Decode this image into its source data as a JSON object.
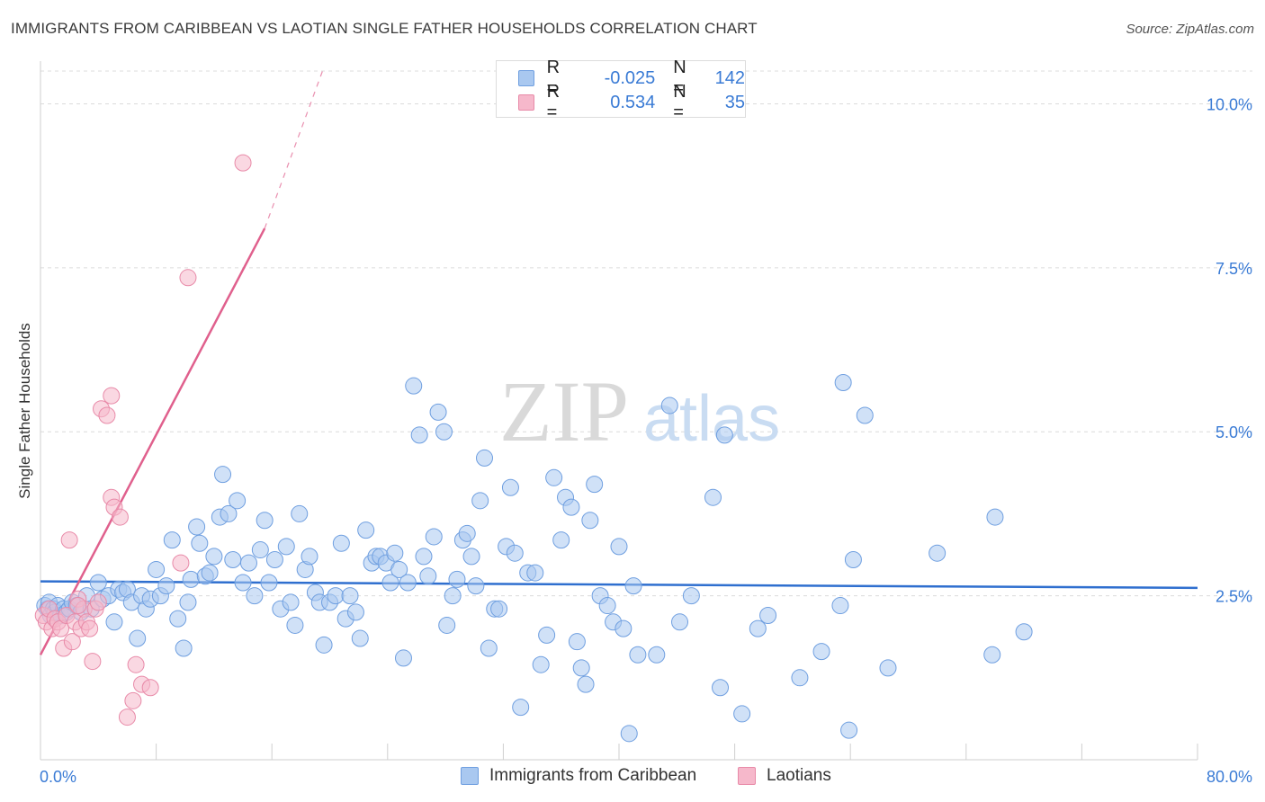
{
  "title": "IMMIGRANTS FROM CARIBBEAN VS LAOTIAN SINGLE FATHER HOUSEHOLDS CORRELATION CHART",
  "source": "Source: ZipAtlas.com",
  "watermark": {
    "zip": "ZIP",
    "atlas": "atlas"
  },
  "legend": {
    "rows": [
      {
        "r_label": "R =",
        "r_value": "-0.025",
        "n_label": "N =",
        "n_value": "142",
        "color": "#a9c8f0",
        "border": "#6f9fe0"
      },
      {
        "r_label": "R =",
        "r_value": "0.534",
        "n_label": "N =",
        "n_value": "35",
        "color": "#f6b8cb",
        "border": "#e88aa8"
      }
    ]
  },
  "bottom_legend": [
    {
      "label": "Immigrants from Caribbean",
      "color": "#a9c8f0",
      "border": "#6f9fe0"
    },
    {
      "label": "Laotians",
      "color": "#f6b8cb",
      "border": "#e88aa8"
    }
  ],
  "chart_data": {
    "type": "scatter",
    "title": "IMMIGRANTS FROM CARIBBEAN VS LAOTIAN SINGLE FATHER HOUSEHOLDS CORRELATION CHART",
    "xlabel": "",
    "ylabel": "Single Father Households",
    "xlim": [
      0,
      80
    ],
    "ylim": [
      0,
      10.5
    ],
    "x_tick_labels": [
      "0.0%",
      "80.0%"
    ],
    "y_ticks": [
      2.5,
      5.0,
      7.5,
      10.0
    ],
    "y_tick_labels": [
      "2.5%",
      "5.0%",
      "7.5%",
      "10.0%"
    ],
    "grid": true,
    "legend_position": "top-center",
    "series": [
      {
        "name": "Immigrants from Caribbean",
        "color": "#6f9fe0",
        "fill": "#a9c8f0",
        "trend": {
          "x": [
            0,
            80
          ],
          "y": [
            2.72,
            2.62
          ],
          "color": "#2f6fcf"
        },
        "points": [
          [
            0.3,
            2.35
          ],
          [
            0.5,
            2.3
          ],
          [
            0.6,
            2.4
          ],
          [
            0.7,
            2.2
          ],
          [
            0.9,
            2.3
          ],
          [
            1.0,
            2.25
          ],
          [
            1.2,
            2.35
          ],
          [
            1.4,
            2.2
          ],
          [
            1.6,
            2.3
          ],
          [
            1.8,
            2.25
          ],
          [
            2.0,
            2.3
          ],
          [
            2.2,
            2.4
          ],
          [
            2.5,
            2.35
          ],
          [
            2.8,
            2.25
          ],
          [
            3.2,
            2.5
          ],
          [
            3.5,
            2.3
          ],
          [
            4.0,
            2.7
          ],
          [
            4.3,
            2.45
          ],
          [
            4.7,
            2.5
          ],
          [
            5.1,
            2.1
          ],
          [
            5.4,
            2.6
          ],
          [
            5.7,
            2.55
          ],
          [
            6.0,
            2.6
          ],
          [
            6.3,
            2.4
          ],
          [
            6.7,
            1.85
          ],
          [
            7.0,
            2.5
          ],
          [
            7.3,
            2.3
          ],
          [
            7.6,
            2.45
          ],
          [
            8.0,
            2.9
          ],
          [
            8.3,
            2.5
          ],
          [
            8.7,
            2.65
          ],
          [
            9.1,
            3.35
          ],
          [
            9.5,
            2.15
          ],
          [
            9.9,
            1.7
          ],
          [
            10.2,
            2.4
          ],
          [
            10.4,
            2.75
          ],
          [
            10.8,
            3.55
          ],
          [
            11.0,
            3.3
          ],
          [
            11.4,
            2.8
          ],
          [
            11.7,
            2.85
          ],
          [
            12.0,
            3.1
          ],
          [
            12.4,
            3.7
          ],
          [
            12.6,
            4.35
          ],
          [
            13.0,
            3.75
          ],
          [
            13.3,
            3.05
          ],
          [
            13.6,
            3.95
          ],
          [
            14.0,
            2.7
          ],
          [
            14.4,
            3.0
          ],
          [
            14.8,
            2.5
          ],
          [
            15.2,
            3.2
          ],
          [
            15.5,
            3.65
          ],
          [
            15.8,
            2.7
          ],
          [
            16.2,
            3.05
          ],
          [
            16.6,
            2.3
          ],
          [
            17.0,
            3.25
          ],
          [
            17.3,
            2.4
          ],
          [
            17.6,
            2.05
          ],
          [
            17.9,
            3.75
          ],
          [
            18.3,
            2.9
          ],
          [
            18.6,
            3.1
          ],
          [
            19.0,
            2.55
          ],
          [
            19.3,
            2.4
          ],
          [
            19.6,
            1.75
          ],
          [
            20.0,
            2.4
          ],
          [
            20.4,
            2.5
          ],
          [
            20.8,
            3.3
          ],
          [
            21.1,
            2.15
          ],
          [
            21.4,
            2.5
          ],
          [
            21.8,
            2.25
          ],
          [
            22.1,
            1.85
          ],
          [
            22.5,
            3.5
          ],
          [
            22.9,
            3.0
          ],
          [
            23.2,
            3.1
          ],
          [
            23.5,
            3.1
          ],
          [
            23.9,
            3.0
          ],
          [
            24.2,
            2.7
          ],
          [
            24.5,
            3.15
          ],
          [
            24.8,
            2.9
          ],
          [
            25.1,
            1.55
          ],
          [
            25.4,
            2.7
          ],
          [
            25.8,
            5.7
          ],
          [
            26.2,
            4.95
          ],
          [
            26.5,
            3.1
          ],
          [
            26.8,
            2.8
          ],
          [
            27.2,
            3.4
          ],
          [
            27.5,
            5.3
          ],
          [
            27.9,
            5.0
          ],
          [
            28.1,
            2.05
          ],
          [
            28.5,
            2.5
          ],
          [
            28.8,
            2.75
          ],
          [
            29.2,
            3.35
          ],
          [
            29.5,
            3.45
          ],
          [
            29.8,
            3.1
          ],
          [
            30.1,
            2.65
          ],
          [
            30.4,
            3.95
          ],
          [
            30.7,
            4.6
          ],
          [
            31.0,
            1.7
          ],
          [
            31.4,
            2.3
          ],
          [
            31.7,
            2.3
          ],
          [
            32.2,
            3.25
          ],
          [
            32.5,
            4.15
          ],
          [
            32.8,
            3.15
          ],
          [
            33.2,
            0.8
          ],
          [
            33.7,
            2.85
          ],
          [
            34.2,
            2.85
          ],
          [
            34.6,
            1.45
          ],
          [
            35.0,
            1.9
          ],
          [
            35.5,
            4.3
          ],
          [
            36.0,
            3.35
          ],
          [
            36.3,
            4.0
          ],
          [
            36.7,
            3.85
          ],
          [
            37.1,
            1.8
          ],
          [
            37.4,
            1.4
          ],
          [
            37.7,
            1.15
          ],
          [
            38.0,
            3.65
          ],
          [
            38.3,
            4.2
          ],
          [
            38.7,
            2.5
          ],
          [
            39.2,
            2.35
          ],
          [
            39.6,
            2.1
          ],
          [
            40.0,
            3.25
          ],
          [
            40.3,
            2.0
          ],
          [
            40.7,
            0.4
          ],
          [
            41.0,
            2.65
          ],
          [
            41.3,
            1.6
          ],
          [
            42.6,
            1.6
          ],
          [
            43.5,
            5.4
          ],
          [
            44.2,
            2.1
          ],
          [
            45.0,
            2.5
          ],
          [
            46.5,
            4.0
          ],
          [
            47.0,
            1.1
          ],
          [
            47.3,
            4.95
          ],
          [
            48.5,
            0.7
          ],
          [
            49.6,
            2.0
          ],
          [
            50.3,
            2.2
          ],
          [
            52.5,
            1.25
          ],
          [
            54.0,
            1.65
          ],
          [
            55.3,
            2.35
          ],
          [
            55.5,
            5.75
          ],
          [
            55.9,
            0.45
          ],
          [
            56.2,
            3.05
          ],
          [
            57.0,
            5.25
          ],
          [
            58.6,
            1.4
          ],
          [
            62.0,
            3.15
          ],
          [
            65.8,
            1.6
          ],
          [
            66.0,
            3.7
          ],
          [
            68.0,
            1.95
          ]
        ]
      },
      {
        "name": "Laotians",
        "color": "#e88aa8",
        "fill": "#f6b8cb",
        "trend": {
          "x": [
            0,
            15.5
          ],
          "y": [
            1.6,
            8.1
          ],
          "dashed_to": [
            19.5,
            10.5
          ],
          "color": "#e0608d"
        },
        "points": [
          [
            0.2,
            2.2
          ],
          [
            0.4,
            2.1
          ],
          [
            0.6,
            2.3
          ],
          [
            0.8,
            2.0
          ],
          [
            1.0,
            2.15
          ],
          [
            1.2,
            2.1
          ],
          [
            1.4,
            2.0
          ],
          [
            1.6,
            1.7
          ],
          [
            1.8,
            2.2
          ],
          [
            2.0,
            3.35
          ],
          [
            2.2,
            1.8
          ],
          [
            2.4,
            2.1
          ],
          [
            2.6,
            2.45
          ],
          [
            2.8,
            2.0
          ],
          [
            3.0,
            2.3
          ],
          [
            3.2,
            2.1
          ],
          [
            3.4,
            2.0
          ],
          [
            3.6,
            1.5
          ],
          [
            3.8,
            2.3
          ],
          [
            4.0,
            2.4
          ],
          [
            4.2,
            5.35
          ],
          [
            4.6,
            5.25
          ],
          [
            4.9,
            5.55
          ],
          [
            4.9,
            4.0
          ],
          [
            5.1,
            3.85
          ],
          [
            5.5,
            3.7
          ],
          [
            6.0,
            0.65
          ],
          [
            6.4,
            0.9
          ],
          [
            6.6,
            1.45
          ],
          [
            7.0,
            1.15
          ],
          [
            7.6,
            1.1
          ],
          [
            9.7,
            3.0
          ],
          [
            10.2,
            7.35
          ],
          [
            14.0,
            9.1
          ],
          [
            2.6,
            2.35
          ]
        ]
      }
    ]
  }
}
